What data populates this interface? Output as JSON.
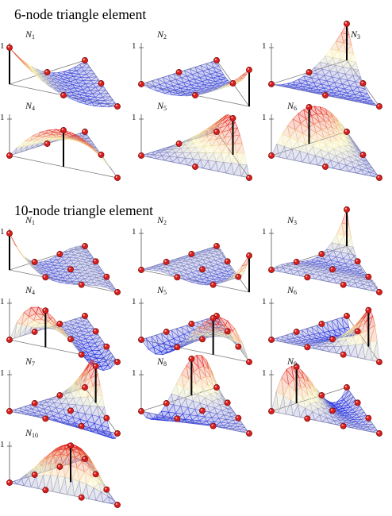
{
  "sections": [
    {
      "title": "6-node triangle element",
      "nodes": 6,
      "panels": [
        {
          "label": "N",
          "sub": "1",
          "one": "1"
        },
        {
          "label": "N",
          "sub": "2",
          "one": "1"
        },
        {
          "label": "N",
          "sub": "3",
          "one": "1"
        },
        {
          "label": "N",
          "sub": "4",
          "one": "1"
        },
        {
          "label": "N",
          "sub": "5",
          "one": "1"
        },
        {
          "label": "N",
          "sub": "6",
          "one": "1"
        }
      ]
    },
    {
      "title": "10-node triangle element",
      "nodes": 10,
      "panels": [
        {
          "label": "N",
          "sub": "1",
          "one": "1"
        },
        {
          "label": "N",
          "sub": "2",
          "one": "1"
        },
        {
          "label": "N",
          "sub": "3",
          "one": "1"
        },
        {
          "label": "N",
          "sub": "4",
          "one": "1"
        },
        {
          "label": "N",
          "sub": "5",
          "one": "1"
        },
        {
          "label": "N",
          "sub": "6",
          "one": "1"
        },
        {
          "label": "N",
          "sub": "7",
          "one": "1"
        },
        {
          "label": "N",
          "sub": "8",
          "one": "1"
        },
        {
          "label": "N",
          "sub": "9",
          "one": "1"
        },
        {
          "label": "N",
          "sub": "10",
          "one": "1"
        }
      ]
    }
  ],
  "colors": {
    "low": "#2a35e0",
    "mid": "#f7f3b0",
    "high": "#e21010",
    "node_fill": "#d81e1e",
    "node_stroke": "#7a0a0a",
    "frame": "#7a7a7a"
  }
}
